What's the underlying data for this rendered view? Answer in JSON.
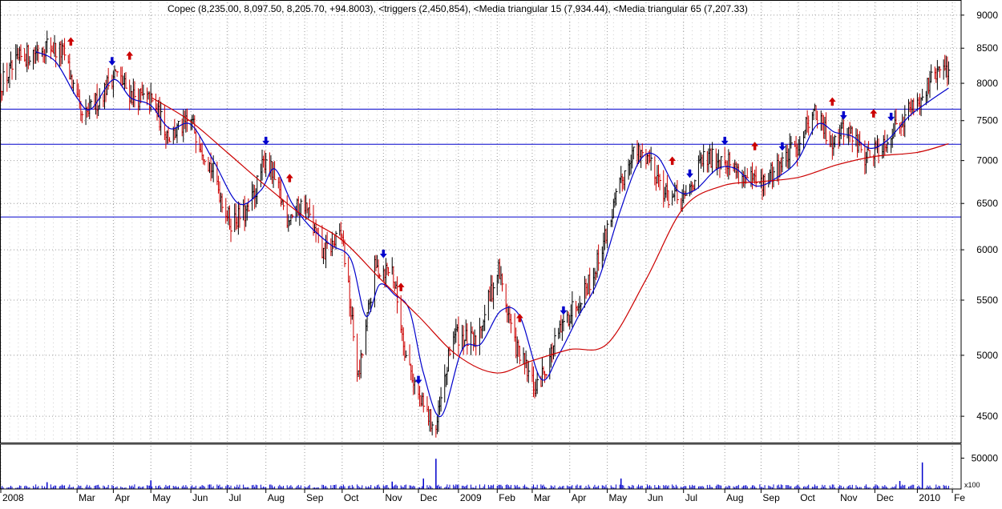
{
  "header": {
    "title": "Copec (8,235.00, 8,097.50, 8,205.70, +94.8003), <triggers (2,450,854), <Media triangular 15 (7,934.44), <Media triangular 65 (7,207.33)"
  },
  "colors": {
    "up_bar": "#000000",
    "down_bar": "#cc0000",
    "ma15": "#0000cc",
    "ma65": "#cc0000",
    "hline": "#0000cc",
    "grid": "#999999",
    "buy_arrow": "#0000cc",
    "sell_arrow": "#cc0000",
    "volume": "#0000cc"
  },
  "chart_data": {
    "type": "line",
    "chart_kind": "ohlc_price_with_moving_averages_and_volume",
    "y_scale": "log",
    "grid": true,
    "ylim": [
      4300,
      9200
    ],
    "volume_ylim": [
      0,
      70000
    ],
    "volume_unit_label": "x100",
    "y_ticks": [
      9000,
      8500,
      8000,
      7500,
      7000,
      6500,
      6000,
      5500,
      5000,
      4500
    ],
    "volume_ticks": [
      50000
    ],
    "x_range": [
      "2008-01-02",
      "2010-02-08"
    ],
    "x_tick_labels": [
      {
        "label": "2008",
        "date": "2008-01-02"
      },
      {
        "label": "Mar",
        "date": "2008-03-03"
      },
      {
        "label": "Apr",
        "date": "2008-04-01"
      },
      {
        "label": "May",
        "date": "2008-05-01"
      },
      {
        "label": "Jun",
        "date": "2008-06-02"
      },
      {
        "label": "Jul",
        "date": "2008-07-01"
      },
      {
        "label": "Aug",
        "date": "2008-08-01"
      },
      {
        "label": "Sep",
        "date": "2008-09-01"
      },
      {
        "label": "Oct",
        "date": "2008-10-01"
      },
      {
        "label": "Nov",
        "date": "2008-11-03"
      },
      {
        "label": "Dec",
        "date": "2008-12-01"
      },
      {
        "label": "2009",
        "date": "2009-01-02"
      },
      {
        "label": "Feb",
        "date": "2009-02-02"
      },
      {
        "label": "Mar",
        "date": "2009-03-02"
      },
      {
        "label": "Apr",
        "date": "2009-04-01"
      },
      {
        "label": "May",
        "date": "2009-05-01"
      },
      {
        "label": "Jun",
        "date": "2009-06-01"
      },
      {
        "label": "Jul",
        "date": "2009-07-01"
      },
      {
        "label": "Aug",
        "date": "2009-08-03"
      },
      {
        "label": "Sep",
        "date": "2009-09-01"
      },
      {
        "label": "Oct",
        "date": "2009-10-01"
      },
      {
        "label": "Nov",
        "date": "2009-11-02"
      },
      {
        "label": "Dec",
        "date": "2009-12-01"
      },
      {
        "label": "2010",
        "date": "2010-01-04"
      },
      {
        "label": "Fe",
        "date": "2010-02-01"
      }
    ],
    "horizontal_lines": [
      7650,
      7200,
      6350
    ],
    "last_bar": {
      "open": 8235.0,
      "high": 8235.0,
      "low": 8097.5,
      "close": 8205.7,
      "change": 94.8003
    },
    "price_path": [
      {
        "date": "2008-01-02",
        "close": 8000
      },
      {
        "date": "2008-01-18",
        "close": 8350
      },
      {
        "date": "2008-02-08",
        "close": 8550
      },
      {
        "date": "2008-02-22",
        "close": 8400
      },
      {
        "date": "2008-03-07",
        "close": 7500
      },
      {
        "date": "2008-03-21",
        "close": 7800
      },
      {
        "date": "2008-04-02",
        "close": 8150
      },
      {
        "date": "2008-04-15",
        "close": 7850
      },
      {
        "date": "2008-05-01",
        "close": 7750
      },
      {
        "date": "2008-05-16",
        "close": 7300
      },
      {
        "date": "2008-06-02",
        "close": 7500
      },
      {
        "date": "2008-06-20",
        "close": 6850
      },
      {
        "date": "2008-07-03",
        "close": 6300
      },
      {
        "date": "2008-07-18",
        "close": 6400
      },
      {
        "date": "2008-08-01",
        "close": 7050
      },
      {
        "date": "2008-08-18",
        "close": 6350
      },
      {
        "date": "2008-09-01",
        "close": 6500
      },
      {
        "date": "2008-09-15",
        "close": 5950
      },
      {
        "date": "2008-10-01",
        "close": 6150
      },
      {
        "date": "2008-10-14",
        "close": 4800
      },
      {
        "date": "2008-10-27",
        "close": 5800
      },
      {
        "date": "2008-11-10",
        "close": 5800
      },
      {
        "date": "2008-11-21",
        "close": 5000
      },
      {
        "date": "2008-12-03",
        "close": 4600
      },
      {
        "date": "2008-12-15",
        "close": 4400
      },
      {
        "date": "2008-12-29",
        "close": 5200
      },
      {
        "date": "2009-01-15",
        "close": 5100
      },
      {
        "date": "2009-02-03",
        "close": 5800
      },
      {
        "date": "2009-02-16",
        "close": 5100
      },
      {
        "date": "2009-03-05",
        "close": 4700
      },
      {
        "date": "2009-03-20",
        "close": 5100
      },
      {
        "date": "2009-04-02",
        "close": 5400
      },
      {
        "date": "2009-04-20",
        "close": 5750
      },
      {
        "date": "2009-05-05",
        "close": 6400
      },
      {
        "date": "2009-05-20",
        "close": 7100
      },
      {
        "date": "2009-06-03",
        "close": 7050
      },
      {
        "date": "2009-06-17",
        "close": 6600
      },
      {
        "date": "2009-07-01",
        "close": 6500
      },
      {
        "date": "2009-07-16",
        "close": 7000
      },
      {
        "date": "2009-08-03",
        "close": 7050
      },
      {
        "date": "2009-08-17",
        "close": 6800
      },
      {
        "date": "2009-09-01",
        "close": 6700
      },
      {
        "date": "2009-09-16",
        "close": 6950
      },
      {
        "date": "2009-10-01",
        "close": 7200
      },
      {
        "date": "2009-10-12",
        "close": 7650
      },
      {
        "date": "2009-10-26",
        "close": 7250
      },
      {
        "date": "2009-11-09",
        "close": 7400
      },
      {
        "date": "2009-11-23",
        "close": 7050
      },
      {
        "date": "2009-12-07",
        "close": 7200
      },
      {
        "date": "2009-12-21",
        "close": 7500
      },
      {
        "date": "2010-01-06",
        "close": 7800
      },
      {
        "date": "2010-01-20",
        "close": 8150
      },
      {
        "date": "2010-01-29",
        "close": 8205.7
      }
    ],
    "series": [
      {
        "name": "Media triangular 15",
        "color": "#0000cc",
        "points": [
          {
            "date": "2008-01-30",
            "value": 8450
          },
          {
            "date": "2008-02-15",
            "value": 8300
          },
          {
            "date": "2008-03-03",
            "value": 7800
          },
          {
            "date": "2008-03-14",
            "value": 7650
          },
          {
            "date": "2008-04-01",
            "value": 8050
          },
          {
            "date": "2008-04-15",
            "value": 7800
          },
          {
            "date": "2008-05-01",
            "value": 7700
          },
          {
            "date": "2008-05-16",
            "value": 7400
          },
          {
            "date": "2008-06-02",
            "value": 7450
          },
          {
            "date": "2008-06-20",
            "value": 7000
          },
          {
            "date": "2008-07-10",
            "value": 6500
          },
          {
            "date": "2008-07-28",
            "value": 6650
          },
          {
            "date": "2008-08-08",
            "value": 6900
          },
          {
            "date": "2008-08-22",
            "value": 6500
          },
          {
            "date": "2008-09-05",
            "value": 6250
          },
          {
            "date": "2008-09-22",
            "value": 6050
          },
          {
            "date": "2008-10-08",
            "value": 5900
          },
          {
            "date": "2008-10-20",
            "value": 5350
          },
          {
            "date": "2008-10-31",
            "value": 5650
          },
          {
            "date": "2008-11-12",
            "value": 5550
          },
          {
            "date": "2008-11-24",
            "value": 5400
          },
          {
            "date": "2008-12-05",
            "value": 4850
          },
          {
            "date": "2008-12-19",
            "value": 4500
          },
          {
            "date": "2009-01-05",
            "value": 5050
          },
          {
            "date": "2009-01-20",
            "value": 5100
          },
          {
            "date": "2009-02-05",
            "value": 5400
          },
          {
            "date": "2009-02-20",
            "value": 5350
          },
          {
            "date": "2009-03-09",
            "value": 4800
          },
          {
            "date": "2009-03-23",
            "value": 5000
          },
          {
            "date": "2009-04-08",
            "value": 5350
          },
          {
            "date": "2009-04-24",
            "value": 5700
          },
          {
            "date": "2009-05-11",
            "value": 6400
          },
          {
            "date": "2009-05-27",
            "value": 7000
          },
          {
            "date": "2009-06-10",
            "value": 7050
          },
          {
            "date": "2009-06-26",
            "value": 6650
          },
          {
            "date": "2009-07-10",
            "value": 6650
          },
          {
            "date": "2009-07-28",
            "value": 6900
          },
          {
            "date": "2009-08-12",
            "value": 6900
          },
          {
            "date": "2009-08-28",
            "value": 6700
          },
          {
            "date": "2009-09-14",
            "value": 6800
          },
          {
            "date": "2009-09-30",
            "value": 7000
          },
          {
            "date": "2009-10-16",
            "value": 7450
          },
          {
            "date": "2009-10-30",
            "value": 7350
          },
          {
            "date": "2009-11-13",
            "value": 7300
          },
          {
            "date": "2009-11-27",
            "value": 7150
          },
          {
            "date": "2009-12-11",
            "value": 7250
          },
          {
            "date": "2009-12-28",
            "value": 7550
          },
          {
            "date": "2010-01-13",
            "value": 7750
          },
          {
            "date": "2010-01-29",
            "value": 7934.44
          }
        ]
      },
      {
        "name": "Media triangular 65",
        "color": "#cc0000",
        "points": [
          {
            "date": "2008-05-02",
            "value": 7800
          },
          {
            "date": "2008-06-01",
            "value": 7500
          },
          {
            "date": "2008-07-01",
            "value": 7100
          },
          {
            "date": "2008-08-01",
            "value": 6700
          },
          {
            "date": "2008-09-01",
            "value": 6350
          },
          {
            "date": "2008-10-01",
            "value": 6100
          },
          {
            "date": "2008-11-01",
            "value": 5700
          },
          {
            "date": "2008-12-01",
            "value": 5350
          },
          {
            "date": "2009-01-01",
            "value": 5000
          },
          {
            "date": "2009-02-01",
            "value": 4850
          },
          {
            "date": "2009-03-01",
            "value": 4950
          },
          {
            "date": "2009-04-01",
            "value": 5050
          },
          {
            "date": "2009-05-01",
            "value": 5100
          },
          {
            "date": "2009-06-01",
            "value": 5700
          },
          {
            "date": "2009-07-01",
            "value": 6450
          },
          {
            "date": "2009-08-01",
            "value": 6700
          },
          {
            "date": "2009-09-01",
            "value": 6750
          },
          {
            "date": "2009-10-01",
            "value": 6800
          },
          {
            "date": "2009-11-01",
            "value": 6950
          },
          {
            "date": "2009-12-01",
            "value": 7050
          },
          {
            "date": "2010-01-04",
            "value": 7100
          },
          {
            "date": "2010-01-29",
            "value": 7207.33
          }
        ]
      }
    ],
    "buy_signals": [
      "2008-03-31",
      "2008-08-01",
      "2008-11-03",
      "2008-12-01",
      "2009-03-27",
      "2009-07-06",
      "2009-08-03",
      "2009-09-18",
      "2009-11-06",
      "2009-12-14"
    ],
    "sell_signals": [
      "2008-02-27",
      "2008-04-14",
      "2008-08-20",
      "2008-11-17",
      "2009-02-20",
      "2009-06-22",
      "2009-08-27",
      "2009-10-28",
      "2009-11-30"
    ],
    "volume_spikes": [
      {
        "date": "2008-02-08",
        "value": 11000
      },
      {
        "date": "2008-05-01",
        "value": 14000
      },
      {
        "date": "2008-11-10",
        "value": 12000
      },
      {
        "date": "2008-12-05",
        "value": 17000
      },
      {
        "date": "2008-12-15",
        "value": 49000
      },
      {
        "date": "2009-05-12",
        "value": 17000
      },
      {
        "date": "2009-12-21",
        "value": 13000
      },
      {
        "date": "2010-01-08",
        "value": 43000
      }
    ]
  }
}
